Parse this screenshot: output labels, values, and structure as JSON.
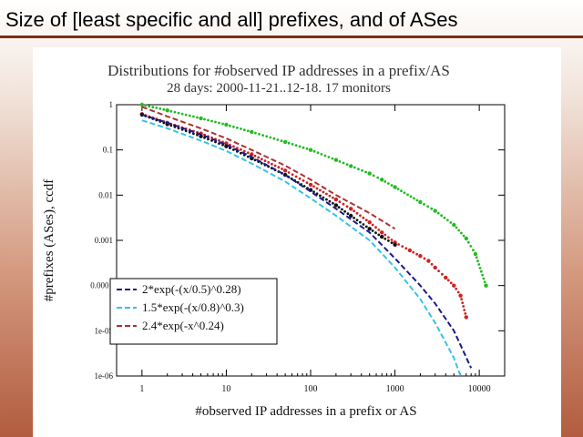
{
  "slide": {
    "title": "Size of [least specific and all] prefixes, and of ASes"
  },
  "chart_data": {
    "type": "scatter",
    "title": "Distributions for #observed IP addresses in a prefix/AS",
    "subtitle": "28 days: 2000-11-21..12-18. 17 monitors",
    "xlabel": "#observed IP addresses in a prefix or AS",
    "ylabel": "#prefixes (ASes), ccdf",
    "xscale": "log",
    "yscale": "log",
    "xlim": [
      0.5,
      20000
    ],
    "ylim": [
      1e-06,
      1
    ],
    "x_ticks": [
      1,
      10,
      100,
      1000,
      10000
    ],
    "x_tick_labels": [
      "1",
      "10",
      "100",
      "1000",
      "10000"
    ],
    "y_ticks": [
      1,
      0.1,
      0.01,
      0.001,
      0.0001,
      1e-05,
      1e-06
    ],
    "y_tick_labels": [
      "1",
      "0.1",
      "0.01",
      "0.001",
      "0.0001",
      "1e-05",
      "1e-06"
    ],
    "legend_position": "bottom-left",
    "series": [
      {
        "color": "#22bb22",
        "style": "points",
        "x": [
          1,
          2,
          5,
          10,
          20,
          50,
          100,
          200,
          300,
          500,
          700,
          1000,
          2000,
          3000,
          5000,
          7000,
          9000,
          12000
        ],
        "y": [
          1,
          0.75,
          0.5,
          0.36,
          0.25,
          0.15,
          0.1,
          0.06,
          0.044,
          0.03,
          0.022,
          0.015,
          0.007,
          0.0045,
          0.0022,
          0.0011,
          0.0005,
          0.0001
        ]
      },
      {
        "color": "#cc2222",
        "style": "points",
        "x": [
          1,
          2,
          5,
          10,
          20,
          50,
          100,
          200,
          300,
          500,
          700,
          1000,
          1500,
          2000,
          2500,
          3000,
          4000,
          5000,
          6000,
          7000
        ],
        "y": [
          0.62,
          0.4,
          0.23,
          0.14,
          0.08,
          0.035,
          0.017,
          0.008,
          0.005,
          0.0025,
          0.0015,
          0.0009,
          0.0006,
          0.00045,
          0.00035,
          0.00025,
          0.00015,
          0.0001,
          6e-05,
          2e-05
        ]
      },
      {
        "color": "#111111",
        "style": "points",
        "x": [
          1,
          2,
          5,
          10,
          20,
          50,
          100,
          200,
          300,
          500,
          700,
          1000
        ],
        "y": [
          0.6,
          0.37,
          0.2,
          0.12,
          0.065,
          0.028,
          0.013,
          0.006,
          0.0035,
          0.0018,
          0.0012,
          0.0008
        ]
      },
      {
        "name": "2*exp(-(x/0.5)^0.28)",
        "color": "#1a1a8c",
        "style": "dashed",
        "x": [
          1,
          2,
          5,
          10,
          20,
          50,
          100,
          200,
          500,
          1000,
          2000,
          3000,
          5000,
          8000
        ],
        "y": [
          0.6,
          0.4,
          0.22,
          0.13,
          0.07,
          0.028,
          0.012,
          0.005,
          0.0015,
          0.0004,
          0.0001,
          4e-05,
          1e-05,
          1.5e-06
        ]
      },
      {
        "name": "1.5*exp(-(x/0.8)^0.3)",
        "color": "#33c4e6",
        "style": "dashed",
        "x": [
          1,
          2,
          5,
          10,
          20,
          50,
          100,
          200,
          500,
          1000,
          2000,
          3000,
          5000,
          6000
        ],
        "y": [
          0.45,
          0.3,
          0.16,
          0.095,
          0.05,
          0.02,
          0.0085,
          0.0035,
          0.001,
          0.00025,
          5e-05,
          1.5e-05,
          2.5e-06,
          1e-06
        ]
      },
      {
        "name": "2.4*exp(-x^0.24)",
        "color": "#aa3333",
        "style": "dashed",
        "x": [
          1,
          2,
          5,
          10,
          20,
          50,
          100,
          200,
          500,
          1000
        ],
        "y": [
          0.9,
          0.55,
          0.3,
          0.18,
          0.1,
          0.045,
          0.022,
          0.01,
          0.004,
          0.0018
        ]
      }
    ]
  }
}
